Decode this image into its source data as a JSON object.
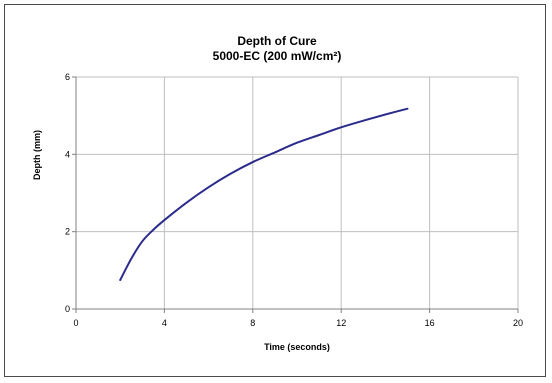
{
  "chart_data": {
    "type": "line",
    "title": "Depth of Cure",
    "subtitle": "5000-EC (200 mW/cm²)",
    "xlabel": "Time (seconds)",
    "ylabel": "Depth (mm)",
    "xlim": [
      0,
      20
    ],
    "ylim": [
      0,
      6
    ],
    "xticks": [
      0,
      4,
      8,
      12,
      16,
      20
    ],
    "yticks": [
      0,
      2,
      4,
      6
    ],
    "grid": true,
    "colors": {
      "line": "#2b2b8c",
      "grid": "#bfbfbf",
      "axis": "#808080"
    },
    "series": [
      {
        "x": [
          2,
          2.5,
          3,
          3.5,
          4,
          5,
          6,
          7,
          8,
          9,
          10,
          11,
          12,
          13,
          14,
          15
        ],
        "y": [
          0.75,
          1.3,
          1.75,
          2.05,
          2.3,
          2.75,
          3.15,
          3.5,
          3.8,
          4.05,
          4.3,
          4.5,
          4.7,
          4.87,
          5.03,
          5.18
        ]
      }
    ]
  }
}
